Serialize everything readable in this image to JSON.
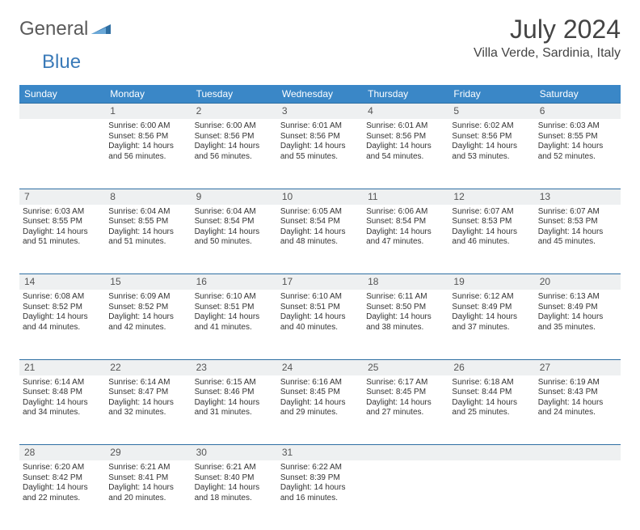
{
  "brand": {
    "general": "General",
    "blue": "Blue"
  },
  "title": "July 2024",
  "location": "Villa Verde, Sardinia, Italy",
  "colors": {
    "header_bg": "#3a87c7",
    "header_text": "#ffffff",
    "daynum_bg": "#eef0f1",
    "border": "#2f6fa3",
    "logo_gray": "#5a5a5a",
    "logo_blue": "#3a7ab8"
  },
  "weekdays": [
    "Sunday",
    "Monday",
    "Tuesday",
    "Wednesday",
    "Thursday",
    "Friday",
    "Saturday"
  ],
  "weeks": [
    {
      "nums": [
        "",
        "1",
        "2",
        "3",
        "4",
        "5",
        "6"
      ],
      "cells": [
        null,
        {
          "sunrise": "Sunrise: 6:00 AM",
          "sunset": "Sunset: 8:56 PM",
          "daylight": "Daylight: 14 hours and 56 minutes."
        },
        {
          "sunrise": "Sunrise: 6:00 AM",
          "sunset": "Sunset: 8:56 PM",
          "daylight": "Daylight: 14 hours and 56 minutes."
        },
        {
          "sunrise": "Sunrise: 6:01 AM",
          "sunset": "Sunset: 8:56 PM",
          "daylight": "Daylight: 14 hours and 55 minutes."
        },
        {
          "sunrise": "Sunrise: 6:01 AM",
          "sunset": "Sunset: 8:56 PM",
          "daylight": "Daylight: 14 hours and 54 minutes."
        },
        {
          "sunrise": "Sunrise: 6:02 AM",
          "sunset": "Sunset: 8:56 PM",
          "daylight": "Daylight: 14 hours and 53 minutes."
        },
        {
          "sunrise": "Sunrise: 6:03 AM",
          "sunset": "Sunset: 8:55 PM",
          "daylight": "Daylight: 14 hours and 52 minutes."
        }
      ]
    },
    {
      "nums": [
        "7",
        "8",
        "9",
        "10",
        "11",
        "12",
        "13"
      ],
      "cells": [
        {
          "sunrise": "Sunrise: 6:03 AM",
          "sunset": "Sunset: 8:55 PM",
          "daylight": "Daylight: 14 hours and 51 minutes."
        },
        {
          "sunrise": "Sunrise: 6:04 AM",
          "sunset": "Sunset: 8:55 PM",
          "daylight": "Daylight: 14 hours and 51 minutes."
        },
        {
          "sunrise": "Sunrise: 6:04 AM",
          "sunset": "Sunset: 8:54 PM",
          "daylight": "Daylight: 14 hours and 50 minutes."
        },
        {
          "sunrise": "Sunrise: 6:05 AM",
          "sunset": "Sunset: 8:54 PM",
          "daylight": "Daylight: 14 hours and 48 minutes."
        },
        {
          "sunrise": "Sunrise: 6:06 AM",
          "sunset": "Sunset: 8:54 PM",
          "daylight": "Daylight: 14 hours and 47 minutes."
        },
        {
          "sunrise": "Sunrise: 6:07 AM",
          "sunset": "Sunset: 8:53 PM",
          "daylight": "Daylight: 14 hours and 46 minutes."
        },
        {
          "sunrise": "Sunrise: 6:07 AM",
          "sunset": "Sunset: 8:53 PM",
          "daylight": "Daylight: 14 hours and 45 minutes."
        }
      ]
    },
    {
      "nums": [
        "14",
        "15",
        "16",
        "17",
        "18",
        "19",
        "20"
      ],
      "cells": [
        {
          "sunrise": "Sunrise: 6:08 AM",
          "sunset": "Sunset: 8:52 PM",
          "daylight": "Daylight: 14 hours and 44 minutes."
        },
        {
          "sunrise": "Sunrise: 6:09 AM",
          "sunset": "Sunset: 8:52 PM",
          "daylight": "Daylight: 14 hours and 42 minutes."
        },
        {
          "sunrise": "Sunrise: 6:10 AM",
          "sunset": "Sunset: 8:51 PM",
          "daylight": "Daylight: 14 hours and 41 minutes."
        },
        {
          "sunrise": "Sunrise: 6:10 AM",
          "sunset": "Sunset: 8:51 PM",
          "daylight": "Daylight: 14 hours and 40 minutes."
        },
        {
          "sunrise": "Sunrise: 6:11 AM",
          "sunset": "Sunset: 8:50 PM",
          "daylight": "Daylight: 14 hours and 38 minutes."
        },
        {
          "sunrise": "Sunrise: 6:12 AM",
          "sunset": "Sunset: 8:49 PM",
          "daylight": "Daylight: 14 hours and 37 minutes."
        },
        {
          "sunrise": "Sunrise: 6:13 AM",
          "sunset": "Sunset: 8:49 PM",
          "daylight": "Daylight: 14 hours and 35 minutes."
        }
      ]
    },
    {
      "nums": [
        "21",
        "22",
        "23",
        "24",
        "25",
        "26",
        "27"
      ],
      "cells": [
        {
          "sunrise": "Sunrise: 6:14 AM",
          "sunset": "Sunset: 8:48 PM",
          "daylight": "Daylight: 14 hours and 34 minutes."
        },
        {
          "sunrise": "Sunrise: 6:14 AM",
          "sunset": "Sunset: 8:47 PM",
          "daylight": "Daylight: 14 hours and 32 minutes."
        },
        {
          "sunrise": "Sunrise: 6:15 AM",
          "sunset": "Sunset: 8:46 PM",
          "daylight": "Daylight: 14 hours and 31 minutes."
        },
        {
          "sunrise": "Sunrise: 6:16 AM",
          "sunset": "Sunset: 8:45 PM",
          "daylight": "Daylight: 14 hours and 29 minutes."
        },
        {
          "sunrise": "Sunrise: 6:17 AM",
          "sunset": "Sunset: 8:45 PM",
          "daylight": "Daylight: 14 hours and 27 minutes."
        },
        {
          "sunrise": "Sunrise: 6:18 AM",
          "sunset": "Sunset: 8:44 PM",
          "daylight": "Daylight: 14 hours and 25 minutes."
        },
        {
          "sunrise": "Sunrise: 6:19 AM",
          "sunset": "Sunset: 8:43 PM",
          "daylight": "Daylight: 14 hours and 24 minutes."
        }
      ]
    },
    {
      "nums": [
        "28",
        "29",
        "30",
        "31",
        "",
        "",
        ""
      ],
      "cells": [
        {
          "sunrise": "Sunrise: 6:20 AM",
          "sunset": "Sunset: 8:42 PM",
          "daylight": "Daylight: 14 hours and 22 minutes."
        },
        {
          "sunrise": "Sunrise: 6:21 AM",
          "sunset": "Sunset: 8:41 PM",
          "daylight": "Daylight: 14 hours and 20 minutes."
        },
        {
          "sunrise": "Sunrise: 6:21 AM",
          "sunset": "Sunset: 8:40 PM",
          "daylight": "Daylight: 14 hours and 18 minutes."
        },
        {
          "sunrise": "Sunrise: 6:22 AM",
          "sunset": "Sunset: 8:39 PM",
          "daylight": "Daylight: 14 hours and 16 minutes."
        },
        null,
        null,
        null
      ]
    }
  ]
}
